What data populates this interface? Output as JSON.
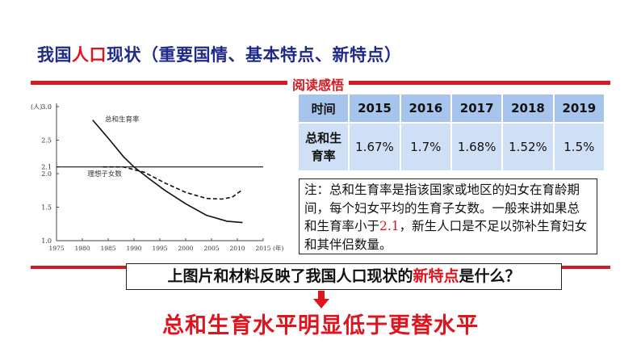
{
  "header": {
    "title_prefix": "我国",
    "title_highlight": "人口",
    "title_suffix": "现状（重要国情、基本特点、新特点）"
  },
  "section_label": "阅读感悟",
  "colors": {
    "accent_red": "#d11a22",
    "title_blue": "#1f2a8a",
    "table_header": "#a7c5ec",
    "table_body": "#cfe0f6"
  },
  "chart_data": {
    "type": "line",
    "y_unit": "(人)",
    "x_unit": "(年)",
    "xlim": [
      1975,
      2015
    ],
    "ylim": [
      1.0,
      3.0
    ],
    "x_ticks": [
      "1975",
      "1980",
      "1985",
      "1990",
      "1995",
      "2000",
      "2005",
      "2010",
      "2015"
    ],
    "y_ticks": [
      "3.0",
      "2.5",
      "2.1",
      "2.0",
      "1.5",
      "1.0"
    ],
    "grid": false,
    "series": [
      {
        "name": "总和生育率",
        "style": "solid",
        "x": [
          1982,
          1985,
          1988,
          1990,
          1993,
          1996,
          2000,
          2004,
          2008,
          2011
        ],
        "y": [
          2.8,
          2.53,
          2.25,
          2.1,
          1.92,
          1.75,
          1.55,
          1.38,
          1.29,
          1.27
        ]
      },
      {
        "name": "理想子女数",
        "style": "dashed",
        "x": [
          1984,
          1988,
          1992,
          1996,
          2000,
          2004,
          2007,
          2009,
          2011
        ],
        "y": [
          2.1,
          2.1,
          2.02,
          1.86,
          1.72,
          1.63,
          1.62,
          1.65,
          1.76
        ]
      },
      {
        "name": "",
        "style": "solid-flat",
        "x": [
          1975,
          2015
        ],
        "y": [
          2.1,
          2.1
        ]
      }
    ]
  },
  "table": {
    "header_label": "时间",
    "years": [
      "2015",
      "2016",
      "2017",
      "2018",
      "2019"
    ],
    "row_label_line1": "总和生",
    "row_label_line2": "育率",
    "values": [
      "1.67%",
      "1.7%",
      "1.68%",
      "1.52%",
      "1.5%"
    ]
  },
  "note": {
    "text_before": "注：总和生育率是指该国家或地区的妇女在育龄期间，每个妇女平均的生育子女数。一般来讲如果总和生育率小于",
    "highlight": "2.1",
    "text_after": "，新生人口是不足以弥补生育妇女和其伴侣数量。"
  },
  "question": {
    "text_before": "上图片和材料反映了我国人口现状的",
    "highlight": "新特点",
    "text_after": "是什么？"
  },
  "answer": "总和生育水平明显低于更替水平"
}
